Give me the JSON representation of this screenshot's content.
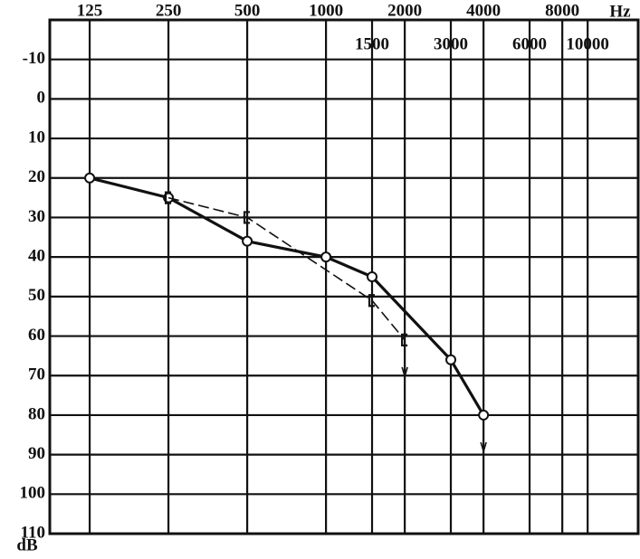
{
  "chart_data": {
    "type": "line",
    "x_scale": "log",
    "x_label": "Hz",
    "y_label": "dB",
    "xlim": [
      88,
      15600
    ],
    "ylim": [
      -20,
      110
    ],
    "xticks": [
      125,
      250,
      500,
      1000,
      2000,
      4000,
      8000
    ],
    "xticks_minor": [
      1500,
      3000,
      6000,
      10000
    ],
    "yticks": [
      -10,
      0,
      10,
      20,
      30,
      40,
      50,
      60,
      70,
      80,
      90,
      100,
      110
    ],
    "grid": true,
    "series": [
      {
        "name": null,
        "color": "#111111",
        "style": "solid",
        "marker": "circle",
        "x": [
          125,
          250,
          500,
          1000,
          1500,
          3000,
          4000
        ],
        "values": [
          20,
          25,
          36,
          40,
          45,
          66,
          80
        ],
        "no_response_last": true
      },
      {
        "name": null,
        "color": "#111111",
        "style": "dashed",
        "marker": "bracket",
        "x": [
          250,
          500,
          1500,
          2000
        ],
        "values": [
          25,
          30,
          51,
          61
        ],
        "no_response_last": true
      }
    ]
  }
}
